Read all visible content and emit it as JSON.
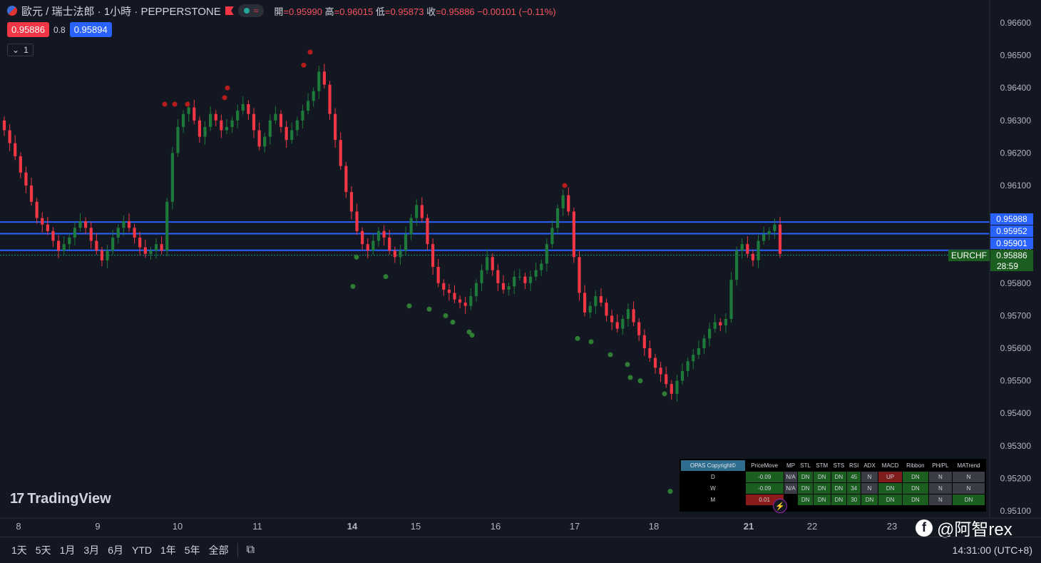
{
  "header": {
    "symbol": "歐元 / 瑞士法郎 · 1小時 · PEPPERSTONE",
    "ohlc": [
      {
        "label": "開",
        "value": "0.95990"
      },
      {
        "label": "高",
        "value": "0.96015"
      },
      {
        "label": "低",
        "value": "0.95873"
      },
      {
        "label": "收",
        "value": "0.95886"
      }
    ],
    "change": "−0.00101 (−0.11%)",
    "pill_icon": "≈"
  },
  "quote": {
    "bid": "0.95886",
    "spread": "0.8",
    "ask": "0.95894"
  },
  "collapse": {
    "label": "1"
  },
  "branding": {
    "tv": "TradingView",
    "watermark": "@阿智rex"
  },
  "bottombar": {
    "timeframes": [
      "1天",
      "5天",
      "1月",
      "3月",
      "6月",
      "YTD",
      "1年",
      "5年",
      "全部"
    ],
    "clock": "14:31:00 (UTC+8)"
  },
  "colors": {
    "up": "#089981",
    "down": "#f23645",
    "line": "#2962ff",
    "bg": "#131722"
  },
  "indicator_table": {
    "header": [
      "OPAS Copyright©",
      "PriceMove",
      "MP",
      "STL",
      "STM",
      "STS",
      "RSI",
      "ADX",
      "MACD",
      "Ribbon",
      "PH/PL",
      "MATrend"
    ],
    "rows": [
      {
        "label": "D",
        "cells": [
          "-0.09",
          "N/A",
          "DN",
          "DN",
          "DN",
          "45",
          "N",
          "UP",
          "DN",
          "N",
          "N"
        ]
      },
      {
        "label": "W",
        "cells": [
          "-0.09",
          "N/A",
          "DN",
          "DN",
          "DN",
          "34",
          "N",
          "DN",
          "DN",
          "N",
          "N"
        ]
      },
      {
        "label": "M",
        "cells": [
          "0.01",
          "",
          "DN",
          "DN",
          "DN",
          "30",
          "DN",
          "DN",
          "DN",
          "N",
          "DN"
        ]
      }
    ]
  },
  "chart_data": {
    "type": "candlestick",
    "symbol_label": "EURCHF",
    "last_price": "0.95886",
    "countdown": "28:59",
    "y_ticks": [
      "0.96600",
      "0.96500",
      "0.96400",
      "0.96300",
      "0.96200",
      "0.96100",
      "0.96000",
      "0.95900",
      "0.95800",
      "0.95700",
      "0.95600",
      "0.95500",
      "0.95400",
      "0.95300",
      "0.95200",
      "0.95100"
    ],
    "ylim": [
      0.951,
      0.966
    ],
    "x_ticks": [
      "8",
      "9",
      "10",
      "11",
      "14",
      "15",
      "16",
      "17",
      "18",
      "21",
      "22",
      "23"
    ],
    "horizontal_lines": [
      "0.95988",
      "0.95952",
      "0.95901"
    ],
    "closes": [
      0.9627,
      0.9623,
      0.9619,
      0.9614,
      0.961,
      0.9605,
      0.96,
      0.9598,
      0.9596,
      0.9593,
      0.959,
      0.9592,
      0.9594,
      0.9597,
      0.9599,
      0.9597,
      0.9593,
      0.959,
      0.9587,
      0.959,
      0.9594,
      0.9597,
      0.9599,
      0.9597,
      0.9594,
      0.9591,
      0.9589,
      0.959,
      0.9592,
      0.959,
      0.9605,
      0.962,
      0.9628,
      0.9632,
      0.9634,
      0.963,
      0.9625,
      0.9628,
      0.9632,
      0.963,
      0.9627,
      0.9628,
      0.963,
      0.9633,
      0.9635,
      0.9632,
      0.9627,
      0.9622,
      0.9625,
      0.963,
      0.9632,
      0.9628,
      0.9624,
      0.9627,
      0.963,
      0.9633,
      0.9636,
      0.9639,
      0.9645,
      0.9641,
      0.9632,
      0.9624,
      0.9616,
      0.9608,
      0.9602,
      0.9596,
      0.9592,
      0.959,
      0.9593,
      0.9596,
      0.9594,
      0.959,
      0.9588,
      0.959,
      0.9595,
      0.96,
      0.9604,
      0.96,
      0.9592,
      0.9585,
      0.958,
      0.9578,
      0.9577,
      0.9575,
      0.9574,
      0.9573,
      0.9576,
      0.958,
      0.9584,
      0.9588,
      0.9584,
      0.958,
      0.9578,
      0.9579,
      0.9582,
      0.9582,
      0.958,
      0.9582,
      0.9584,
      0.9586,
      0.9592,
      0.9597,
      0.9603,
      0.9607,
      0.9602,
      0.9588,
      0.9577,
      0.9571,
      0.9573,
      0.9576,
      0.9574,
      0.957,
      0.9568,
      0.9566,
      0.9569,
      0.9572,
      0.9568,
      0.9564,
      0.956,
      0.9557,
      0.9554,
      0.9552,
      0.9549,
      0.9546,
      0.955,
      0.9553,
      0.9556,
      0.9558,
      0.956,
      0.9563,
      0.9566,
      0.9568,
      0.9567,
      0.9569,
      0.9581,
      0.959,
      0.9592,
      0.9589,
      0.9587,
      0.9593,
      0.9595,
      0.9596,
      0.9598,
      0.9589
    ],
    "red_dots": [
      0.9635,
      0.9635,
      0.9635,
      0.9637,
      0.964,
      0.9647,
      0.9651,
      0.961
    ],
    "green_dots": [
      0.9588,
      0.9579,
      0.9582,
      0.9573,
      0.9572,
      0.957,
      0.9568,
      0.9565,
      0.9564,
      0.9563,
      0.9562,
      0.9558,
      0.9555,
      0.9551,
      0.955,
      0.9546,
      0.9516
    ]
  }
}
